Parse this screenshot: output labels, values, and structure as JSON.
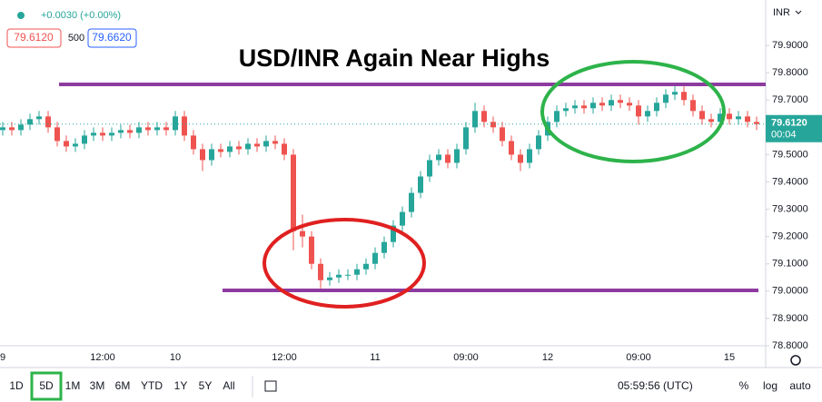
{
  "header": {
    "change": "+0.0030 (+0.00%)",
    "bid": "79.6120",
    "spread": "500",
    "ask": "79.6620"
  },
  "chart_data": {
    "type": "candlestick",
    "title": "USD/INR Again Near Highs",
    "currency": "INR",
    "categories": [
      "9",
      null,
      null,
      null,
      null,
      null,
      null,
      null,
      null,
      null,
      null,
      "12:00",
      null,
      null,
      null,
      null,
      null,
      null,
      null,
      "10",
      null,
      null,
      null,
      null,
      null,
      null,
      null,
      null,
      null,
      null,
      null,
      "12:00",
      null,
      null,
      null,
      null,
      null,
      null,
      null,
      null,
      null,
      "11",
      null,
      null,
      null,
      null,
      null,
      null,
      null,
      null,
      null,
      "09:00",
      null,
      null,
      null,
      null,
      null,
      null,
      null,
      null,
      "12",
      null,
      null,
      null,
      null,
      null,
      null,
      null,
      null,
      null,
      "09:00",
      null,
      null,
      null,
      null,
      null,
      null,
      null,
      null,
      null,
      "15",
      null,
      null,
      null
    ],
    "open": [
      79.59,
      79.6,
      79.59,
      79.61,
      79.63,
      79.64,
      79.6,
      79.55,
      79.53,
      79.54,
      79.57,
      79.58,
      79.57,
      79.58,
      79.59,
      79.58,
      79.6,
      79.59,
      79.6,
      79.59,
      79.64,
      79.57,
      79.52,
      79.48,
      79.52,
      79.51,
      79.53,
      79.52,
      79.54,
      79.53,
      79.55,
      79.54,
      79.5,
      79.22,
      79.2,
      79.1,
      79.04,
      79.05,
      79.06,
      79.06,
      79.08,
      79.1,
      79.14,
      79.18,
      79.24,
      79.29,
      79.36,
      79.42,
      79.48,
      79.5,
      79.47,
      79.52,
      79.6,
      79.66,
      79.62,
      79.6,
      79.55,
      79.5,
      79.47,
      79.52,
      79.57,
      79.62,
      79.66,
      79.67,
      79.68,
      79.67,
      79.69,
      79.68,
      79.7,
      79.69,
      79.68,
      79.64,
      79.66,
      79.69,
      79.72,
      79.73,
      79.7,
      79.66,
      79.63,
      79.62,
      79.65,
      79.63,
      79.64,
      79.62
    ],
    "close": [
      79.6,
      79.59,
      79.61,
      79.63,
      79.64,
      79.6,
      79.55,
      79.53,
      79.54,
      79.57,
      79.58,
      79.57,
      79.58,
      79.59,
      79.58,
      79.6,
      79.59,
      79.6,
      79.59,
      79.64,
      79.57,
      79.52,
      79.48,
      79.52,
      79.51,
      79.53,
      79.52,
      79.54,
      79.53,
      79.55,
      79.54,
      79.5,
      79.22,
      79.2,
      79.1,
      79.04,
      79.05,
      79.06,
      79.06,
      79.08,
      79.1,
      79.14,
      79.18,
      79.24,
      79.29,
      79.36,
      79.42,
      79.48,
      79.5,
      79.47,
      79.52,
      79.6,
      79.66,
      79.62,
      79.6,
      79.55,
      79.5,
      79.47,
      79.52,
      79.57,
      79.62,
      79.66,
      79.67,
      79.68,
      79.67,
      79.69,
      79.68,
      79.7,
      79.69,
      79.68,
      79.64,
      79.66,
      79.69,
      79.72,
      79.73,
      79.7,
      79.66,
      79.63,
      79.62,
      79.65,
      79.63,
      79.64,
      79.62,
      79.612
    ],
    "high": [
      79.62,
      79.62,
      79.63,
      79.65,
      79.66,
      79.66,
      79.62,
      79.57,
      79.56,
      79.59,
      79.6,
      79.6,
      79.6,
      79.61,
      79.61,
      79.62,
      79.62,
      79.62,
      79.62,
      79.66,
      79.66,
      79.59,
      79.54,
      79.54,
      79.54,
      79.55,
      79.55,
      79.56,
      79.56,
      79.57,
      79.57,
      79.56,
      79.52,
      79.28,
      79.22,
      79.12,
      79.07,
      79.08,
      79.08,
      79.1,
      79.12,
      79.16,
      79.2,
      79.26,
      79.31,
      79.38,
      79.44,
      79.5,
      79.52,
      79.52,
      79.54,
      79.62,
      79.69,
      79.68,
      79.64,
      79.62,
      79.57,
      79.52,
      79.54,
      79.59,
      79.64,
      79.68,
      79.69,
      79.7,
      79.7,
      79.71,
      79.71,
      79.72,
      79.72,
      79.71,
      79.7,
      79.68,
      79.71,
      79.74,
      79.75,
      79.75,
      79.72,
      79.68,
      79.65,
      79.67,
      79.67,
      79.66,
      79.66,
      79.64
    ],
    "low": [
      79.57,
      79.57,
      79.57,
      79.59,
      79.61,
      79.58,
      79.53,
      79.51,
      79.51,
      79.52,
      79.55,
      79.55,
      79.55,
      79.56,
      79.56,
      79.56,
      79.57,
      79.57,
      79.57,
      79.57,
      79.55,
      79.5,
      79.44,
      79.46,
      79.49,
      79.49,
      79.5,
      79.5,
      79.51,
      79.51,
      79.52,
      79.48,
      79.15,
      79.16,
      79.08,
      79.01,
      79.02,
      79.03,
      79.04,
      79.04,
      79.06,
      79.08,
      79.12,
      79.16,
      79.22,
      79.27,
      79.34,
      79.4,
      79.46,
      79.45,
      79.45,
      79.5,
      79.58,
      79.6,
      79.58,
      79.53,
      79.48,
      79.44,
      79.45,
      79.5,
      79.55,
      79.6,
      79.64,
      79.65,
      79.65,
      79.65,
      79.66,
      79.66,
      79.67,
      79.66,
      79.61,
      79.62,
      79.64,
      79.67,
      79.7,
      79.68,
      79.64,
      79.61,
      79.6,
      79.6,
      79.61,
      79.61,
      79.6,
      79.59
    ],
    "close_label": "79.6120",
    "countdown": "00:04",
    "up_color": "#26a69a",
    "down_color": "#ef5350",
    "ylim": [
      78.75,
      80.05
    ],
    "yticks": [
      {
        "value": 78.8,
        "label": "78.8000"
      },
      {
        "value": 78.9,
        "label": "78.9000"
      },
      {
        "value": 79.0,
        "label": "79.0000"
      },
      {
        "value": 79.1,
        "label": "79.1000"
      },
      {
        "value": 79.2,
        "label": "79.2000"
      },
      {
        "value": 79.3,
        "label": "79.3000"
      },
      {
        "value": 79.4,
        "label": "79.4000"
      },
      {
        "value": 79.5,
        "label": "79.5000"
      },
      {
        "value": 79.6,
        "label": "79.6000"
      },
      {
        "value": 79.7,
        "label": "79.7000"
      },
      {
        "value": 79.8,
        "label": "79.8000"
      },
      {
        "value": 79.9,
        "label": "79.9000"
      }
    ]
  },
  "toolbar": {
    "ranges": [
      "1D",
      "5D",
      "1M",
      "3M",
      "6M",
      "YTD",
      "1Y",
      "5Y",
      "All"
    ],
    "clock": "05:59:56 (UTC)",
    "percent": "%",
    "log": "log",
    "auto": "auto"
  }
}
